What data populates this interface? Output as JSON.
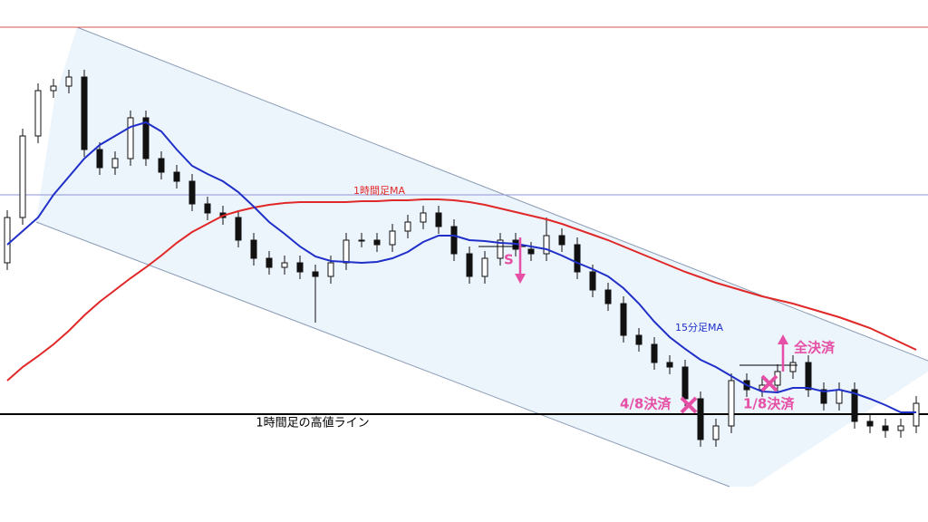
{
  "chart_data": {
    "type": "candlestick",
    "ylim": [
      0,
      576
    ],
    "open": [
      286,
      336,
      426,
      476,
      481,
      491,
      411,
      391,
      401,
      446,
      401,
      386,
      376,
      351,
      341,
      336,
      311,
      291,
      281,
      286,
      276,
      271,
      286,
      311,
      311,
      306,
      321,
      331,
      341,
      326,
      296,
      271,
      291,
      311,
      301,
      296,
      316,
      306,
      276,
      256,
      241,
      206,
      196,
      176,
      171,
      136,
      91,
      106,
      156,
      146,
      151,
      166,
      176,
      146,
      131,
      146,
      111,
      106,
      101,
      106
    ],
    "high": [
      344,
      434,
      484,
      489,
      499,
      499,
      419,
      409,
      454,
      454,
      409,
      394,
      384,
      359,
      349,
      344,
      319,
      299,
      294,
      294,
      284,
      294,
      319,
      319,
      319,
      329,
      339,
      349,
      349,
      334,
      304,
      299,
      319,
      319,
      309,
      336,
      324,
      314,
      284,
      264,
      249,
      214,
      204,
      184,
      179,
      144,
      114,
      164,
      164,
      159,
      174,
      184,
      184,
      154,
      154,
      154,
      119,
      114,
      114,
      139
    ],
    "low": [
      278,
      328,
      418,
      468,
      473,
      403,
      383,
      383,
      393,
      393,
      378,
      368,
      343,
      333,
      328,
      303,
      283,
      273,
      273,
      268,
      220,
      263,
      278,
      303,
      298,
      298,
      313,
      323,
      318,
      288,
      263,
      263,
      283,
      293,
      288,
      288,
      298,
      268,
      248,
      233,
      198,
      188,
      168,
      163,
      128,
      83,
      83,
      98,
      138,
      138,
      143,
      158,
      138,
      123,
      123,
      103,
      98,
      93,
      93,
      98
    ],
    "close": [
      336,
      426,
      476,
      481,
      491,
      411,
      391,
      401,
      446,
      401,
      386,
      376,
      351,
      341,
      336,
      311,
      291,
      281,
      286,
      276,
      271,
      286,
      311,
      311,
      306,
      321,
      331,
      341,
      326,
      296,
      271,
      291,
      311,
      301,
      296,
      316,
      306,
      276,
      256,
      241,
      206,
      196,
      176,
      171,
      136,
      91,
      106,
      156,
      146,
      151,
      166,
      176,
      146,
      131,
      146,
      111,
      106,
      101,
      106,
      131
    ],
    "up_color": "#ffffff",
    "down_color": "#111111",
    "series": [
      {
        "name": "1時間足MA",
        "color": "#e02828",
        "values": [
          156,
          171,
          183,
          196,
          211,
          228,
          243,
          256,
          269,
          281,
          294,
          308,
          320,
          329,
          338,
          343,
          347,
          350,
          352,
          353,
          353,
          353,
          353,
          354,
          354,
          355,
          355,
          356,
          356,
          355,
          353,
          350,
          346,
          342,
          338,
          334,
          329,
          323,
          317,
          311,
          304,
          297,
          290,
          283,
          276,
          270,
          264,
          259,
          254,
          249,
          245,
          241,
          236,
          231,
          226,
          220,
          214,
          206,
          198,
          190
        ]
      },
      {
        "name": "15分足MA",
        "color": "#1f2fc8",
        "values": [
          306,
          321,
          336,
          361,
          381,
          401,
          416,
          426,
          436,
          441,
          431,
          411,
          393,
          384,
          376,
          364,
          348,
          331,
          318,
          304,
          293,
          288,
          287,
          286,
          287,
          291,
          298,
          309,
          316,
          316,
          311,
          310,
          308,
          307,
          304,
          301,
          294,
          286,
          279,
          271,
          258,
          241,
          221,
          204,
          191,
          179,
          171,
          161,
          151,
          144,
          143,
          148,
          148,
          144,
          146,
          142,
          136,
          129,
          121,
          121
        ]
      }
    ],
    "levels": [
      {
        "value": 546,
        "color": "#d9534f"
      },
      {
        "value": 361,
        "color": "#8f95d6"
      },
      {
        "value": 119,
        "color": "#000000",
        "label": "1時間足の高値ライン"
      }
    ],
    "annotations": [
      "S",
      "全決済",
      "4/8決済",
      "1/8決済"
    ]
  }
}
